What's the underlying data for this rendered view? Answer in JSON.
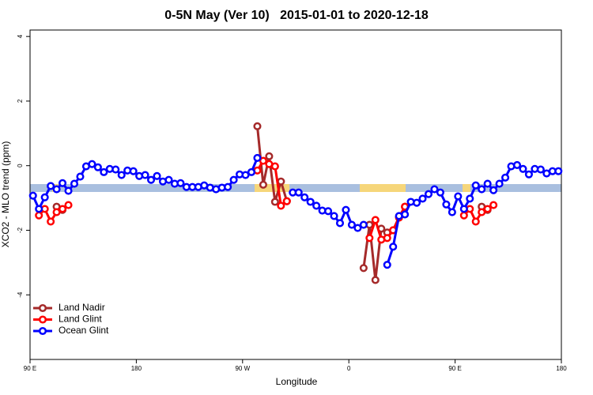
{
  "chart_data": {
    "type": "line",
    "title": "0-5N May (Ver 10)   2015-01-01 to 2020-12-18",
    "x_label": "Longitude",
    "y_label": "XCO2 - MLO trend (ppm)",
    "x": [
      92.5,
      97.5,
      102.5,
      107.5,
      112.5,
      117.5,
      122.5,
      127.5,
      132.5,
      137.5,
      142.5,
      147.5,
      152.5,
      157.5,
      162.5,
      167.5,
      172.5,
      177.5,
      182.5,
      187.5,
      192.5,
      197.5,
      202.5,
      207.5,
      212.5,
      217.5,
      222.5,
      227.5,
      232.5,
      237.5,
      242.5,
      247.5,
      252.5,
      257.5,
      262.5,
      267.5,
      272.5,
      277.5,
      282.5,
      287.5,
      292.5,
      297.5,
      302.5,
      307.5,
      312.5,
      317.5,
      322.5,
      327.5,
      332.5,
      337.5,
      342.5,
      347.5,
      352.5,
      357.5,
      362.5,
      367.5,
      372.5,
      377.5,
      382.5,
      387.5,
      392.5,
      397.5,
      402.5,
      407.5,
      412.5,
      417.5,
      422.5,
      427.5,
      432.5,
      437.5,
      442.5,
      447.5,
      452.5,
      457.5,
      462.5,
      467.5,
      472.5,
      477.5,
      482.5,
      487.5,
      492.5,
      497.5,
      502.5,
      507.5,
      512.5,
      517.5,
      522.5,
      527.5,
      532.5,
      537.5
    ],
    "series": [
      {
        "name": "Land Nadir",
        "color": "#a52a2a",
        "values": [
          null,
          null,
          null,
          null,
          -1.27,
          -1.37,
          null,
          null,
          null,
          null,
          null,
          null,
          null,
          null,
          null,
          null,
          null,
          null,
          null,
          null,
          null,
          null,
          null,
          null,
          null,
          null,
          null,
          null,
          null,
          null,
          null,
          null,
          null,
          null,
          null,
          null,
          null,
          null,
          1.22,
          -0.59,
          0.29,
          -1.12,
          -0.49,
          -1.1,
          null,
          null,
          null,
          null,
          null,
          null,
          null,
          null,
          null,
          null,
          null,
          null,
          -3.17,
          -1.83,
          -3.54,
          -1.95,
          -2.07,
          -2.0,
          -1.59,
          -1.27,
          null,
          null,
          null,
          null,
          null,
          null,
          null,
          null,
          null,
          null,
          null,
          null,
          -1.27,
          -1.37,
          null,
          null,
          null,
          null,
          null,
          null,
          null,
          null,
          null,
          null,
          null,
          null
        ]
      },
      {
        "name": "Land Glint",
        "color": "#ff0000",
        "values": [
          null,
          -1.54,
          -1.34,
          -1.73,
          -1.44,
          -1.34,
          -1.22,
          null,
          null,
          null,
          null,
          null,
          null,
          null,
          null,
          null,
          null,
          null,
          null,
          null,
          null,
          null,
          null,
          null,
          null,
          null,
          null,
          null,
          null,
          null,
          null,
          null,
          null,
          null,
          null,
          null,
          null,
          null,
          -0.15,
          0.15,
          0.05,
          -0.02,
          -1.24,
          -1.1,
          null,
          null,
          null,
          null,
          null,
          null,
          null,
          null,
          null,
          null,
          null,
          null,
          null,
          -2.24,
          -1.68,
          -2.29,
          -2.24,
          -2.0,
          -1.61,
          -1.27,
          null,
          null,
          null,
          null,
          null,
          null,
          null,
          null,
          null,
          -1.54,
          -1.34,
          -1.73,
          -1.44,
          -1.34,
          -1.22,
          null,
          null,
          null,
          null,
          null,
          null,
          null,
          null,
          null,
          null,
          null
        ]
      },
      {
        "name": "Ocean Glint",
        "color": "#0000ff",
        "values": [
          -0.93,
          -1.34,
          -0.98,
          -0.63,
          -0.73,
          -0.54,
          -0.78,
          -0.56,
          -0.34,
          -0.02,
          0.05,
          -0.05,
          -0.2,
          -0.1,
          -0.12,
          -0.29,
          -0.15,
          -0.17,
          -0.32,
          -0.29,
          -0.44,
          -0.32,
          -0.49,
          -0.44,
          -0.56,
          -0.54,
          -0.66,
          -0.66,
          -0.66,
          -0.61,
          -0.68,
          -0.73,
          -0.68,
          -0.66,
          -0.44,
          -0.27,
          -0.29,
          -0.2,
          0.24,
          null,
          null,
          null,
          null,
          null,
          -0.83,
          -0.83,
          -0.98,
          -1.12,
          -1.24,
          -1.39,
          -1.41,
          -1.56,
          -1.78,
          -1.37,
          -1.83,
          -1.93,
          -1.83,
          null,
          null,
          null,
          -3.07,
          -2.51,
          -1.56,
          -1.51,
          -1.12,
          -1.15,
          -1.02,
          -0.88,
          -0.73,
          -0.83,
          -1.2,
          -1.44,
          -0.95,
          -1.34,
          -1.02,
          -0.61,
          -0.73,
          -0.56,
          -0.76,
          -0.56,
          -0.37,
          -0.02,
          0.02,
          -0.1,
          -0.27,
          -0.1,
          -0.12,
          -0.24,
          -0.17,
          -0.17
        ]
      }
    ],
    "xlim": [
      90,
      540
    ],
    "xticks": [
      {
        "value": 90,
        "label": "90 E"
      },
      180,
      {
        "value": 270,
        "label": "90 W"
      },
      {
        "value": 360,
        "label": "0"
      },
      {
        "value": 450,
        "label": "90 E"
      },
      {
        "value": 540,
        "label": "180"
      }
    ],
    "ylim": [
      -6,
      4.2
    ],
    "yticks": [
      -4,
      -2,
      0,
      2,
      4
    ],
    "legend": "bottomleft"
  }
}
